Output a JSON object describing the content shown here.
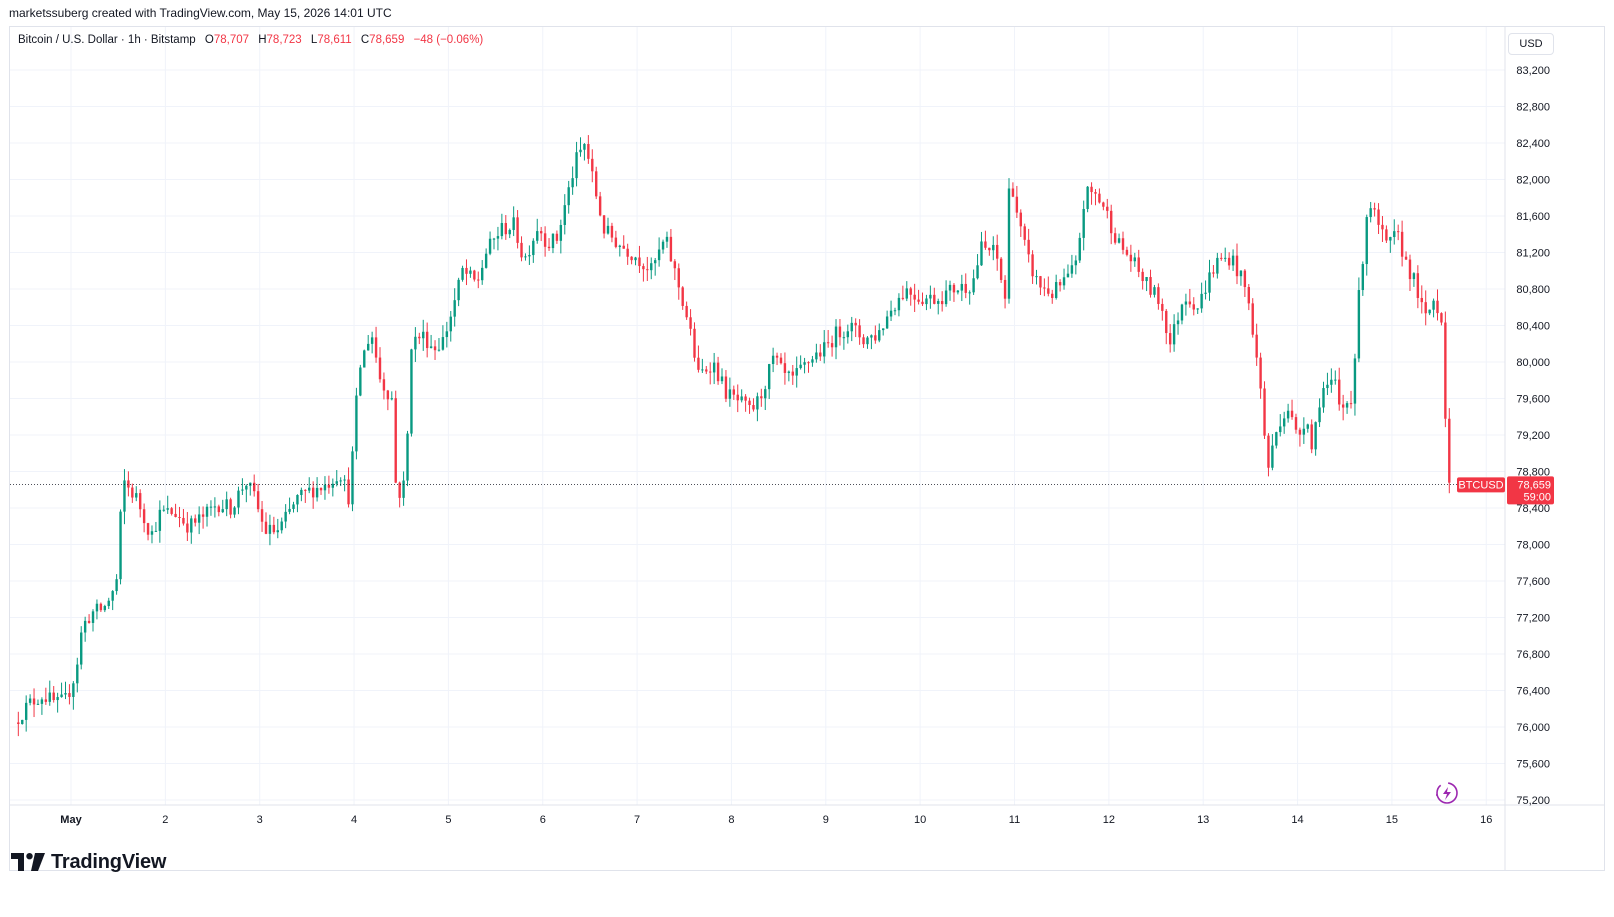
{
  "credit": "marketssuberg created with TradingView.com, May 15, 2026 14:01 UTC",
  "legend": {
    "symbol": "Bitcoin / U.S. Dollar · 1h · Bitstamp",
    "open_label": "O",
    "open": "78,707",
    "high_label": "H",
    "high": "78,723",
    "low_label": "L",
    "low": "78,611",
    "close_label": "C",
    "close": "78,659",
    "change": "−48 (−0.06%)"
  },
  "currency": "USD",
  "brand": {
    "name": "TradingView",
    "logo_icon": "tradingview-logo-icon"
  },
  "colors": {
    "up": "#089981",
    "down": "#f23645",
    "grid": "#f0f3fa",
    "axis_text": "#131722"
  },
  "chart_data": {
    "type": "candlestick",
    "interval": "1h",
    "y_axis": {
      "min": 75000,
      "max": 83500,
      "side": "right",
      "ticks": [
        75200,
        75600,
        76000,
        76400,
        76800,
        77200,
        77600,
        78000,
        78400,
        78800,
        79200,
        79600,
        80000,
        80400,
        80800,
        81200,
        81600,
        82000,
        82400,
        82800,
        83200
      ],
      "tick_labels": [
        "75,200",
        "75,600",
        "76,000",
        "76,400",
        "76,800",
        "77,200",
        "77,600",
        "78,000",
        "78,400",
        "78,800",
        "79,200",
        "79,600",
        "80,000",
        "80,400",
        "80,800",
        "81,200",
        "81,600",
        "82,000",
        "82,400",
        "82,800",
        "83,200"
      ]
    },
    "x_axis": {
      "min": 0.4,
      "max": 15.75,
      "ticks": [
        1,
        2,
        3,
        4,
        5,
        6,
        7,
        8,
        9,
        10,
        11,
        12,
        13,
        14,
        15,
        16
      ],
      "tick_labels": [
        "May",
        "2",
        "3",
        "4",
        "5",
        "6",
        "7",
        "8",
        "9",
        "10",
        "11",
        "12",
        "13",
        "14",
        "15",
        "16"
      ]
    },
    "last_price": {
      "label": "BTCUSD",
      "value": 78659,
      "value_label": "78,659",
      "countdown": "59:00"
    },
    "grid": true,
    "price_path": [
      [
        0.4,
        76050
      ],
      [
        0.55,
        76250
      ],
      [
        0.7,
        76350
      ],
      [
        0.85,
        76250
      ],
      [
        0.95,
        76300
      ],
      [
        1.05,
        76600
      ],
      [
        1.12,
        77100
      ],
      [
        1.22,
        77250
      ],
      [
        1.35,
        77300
      ],
      [
        1.48,
        77550
      ],
      [
        1.55,
        78700
      ],
      [
        1.7,
        78500
      ],
      [
        1.85,
        78100
      ],
      [
        1.95,
        78350
      ],
      [
        2.1,
        78350
      ],
      [
        2.25,
        78200
      ],
      [
        2.4,
        78300
      ],
      [
        2.55,
        78450
      ],
      [
        2.7,
        78400
      ],
      [
        2.85,
        78700
      ],
      [
        2.95,
        78500
      ],
      [
        3.05,
        78150
      ],
      [
        3.2,
        78150
      ],
      [
        3.4,
        78500
      ],
      [
        3.55,
        78600
      ],
      [
        3.7,
        78650
      ],
      [
        3.85,
        78800
      ],
      [
        3.95,
        78500
      ],
      [
        4.05,
        79900
      ],
      [
        4.18,
        80350
      ],
      [
        4.28,
        79800
      ],
      [
        4.4,
        79600
      ],
      [
        4.45,
        78500
      ],
      [
        4.55,
        78700
      ],
      [
        4.6,
        80200
      ],
      [
        4.72,
        80300
      ],
      [
        4.85,
        80150
      ],
      [
        4.95,
        80250
      ],
      [
        5.05,
        80600
      ],
      [
        5.15,
        81000
      ],
      [
        5.3,
        80850
      ],
      [
        5.4,
        81200
      ],
      [
        5.55,
        81450
      ],
      [
        5.7,
        81500
      ],
      [
        5.8,
        81100
      ],
      [
        5.95,
        81500
      ],
      [
        6.05,
        81300
      ],
      [
        6.15,
        81350
      ],
      [
        6.35,
        82200
      ],
      [
        6.45,
        82400
      ],
      [
        6.55,
        81900
      ],
      [
        6.65,
        81450
      ],
      [
        6.8,
        81300
      ],
      [
        7.0,
        81150
      ],
      [
        7.15,
        81000
      ],
      [
        7.3,
        81350
      ],
      [
        7.45,
        80800
      ],
      [
        7.55,
        80400
      ],
      [
        7.65,
        79850
      ],
      [
        7.8,
        80000
      ],
      [
        7.95,
        79650
      ],
      [
        8.1,
        79550
      ],
      [
        8.2,
        79450
      ],
      [
        8.3,
        79600
      ],
      [
        8.45,
        80050
      ],
      [
        8.55,
        79850
      ],
      [
        8.65,
        79800
      ],
      [
        8.85,
        80050
      ],
      [
        9.0,
        80150
      ],
      [
        9.1,
        80300
      ],
      [
        9.25,
        80400
      ],
      [
        9.4,
        80250
      ],
      [
        9.55,
        80300
      ],
      [
        9.7,
        80600
      ],
      [
        9.85,
        80800
      ],
      [
        10.0,
        80700
      ],
      [
        10.2,
        80700
      ],
      [
        10.35,
        80800
      ],
      [
        10.55,
        80850
      ],
      [
        10.65,
        81250
      ],
      [
        10.8,
        81200
      ],
      [
        10.9,
        80700
      ],
      [
        10.95,
        82100
      ],
      [
        11.05,
        81500
      ],
      [
        11.15,
        81100
      ],
      [
        11.25,
        80850
      ],
      [
        11.4,
        80750
      ],
      [
        11.55,
        80900
      ],
      [
        11.65,
        81050
      ],
      [
        11.75,
        81850
      ],
      [
        11.85,
        81850
      ],
      [
        11.95,
        81700
      ],
      [
        12.1,
        81300
      ],
      [
        12.25,
        81100
      ],
      [
        12.4,
        80850
      ],
      [
        12.55,
        80650
      ],
      [
        12.65,
        80200
      ],
      [
        12.8,
        80750
      ],
      [
        12.95,
        80600
      ],
      [
        13.05,
        80900
      ],
      [
        13.15,
        81100
      ],
      [
        13.3,
        81150
      ],
      [
        13.45,
        80800
      ],
      [
        13.52,
        80400
      ],
      [
        13.62,
        79600
      ],
      [
        13.68,
        78800
      ],
      [
        13.8,
        79350
      ],
      [
        13.9,
        79500
      ],
      [
        14.0,
        79150
      ],
      [
        14.1,
        79450
      ],
      [
        14.15,
        79050
      ],
      [
        14.25,
        79700
      ],
      [
        14.4,
        79750
      ],
      [
        14.45,
        79450
      ],
      [
        14.58,
        79650
      ],
      [
        14.65,
        80700
      ],
      [
        14.75,
        81800
      ],
      [
        14.85,
        81500
      ],
      [
        14.95,
        81250
      ],
      [
        15.05,
        81400
      ],
      [
        15.15,
        81100
      ],
      [
        15.25,
        80850
      ],
      [
        15.35,
        80450
      ],
      [
        15.45,
        80700
      ],
      [
        15.55,
        80400
      ],
      [
        15.58,
        78700
      ],
      [
        15.62,
        78659
      ]
    ]
  }
}
